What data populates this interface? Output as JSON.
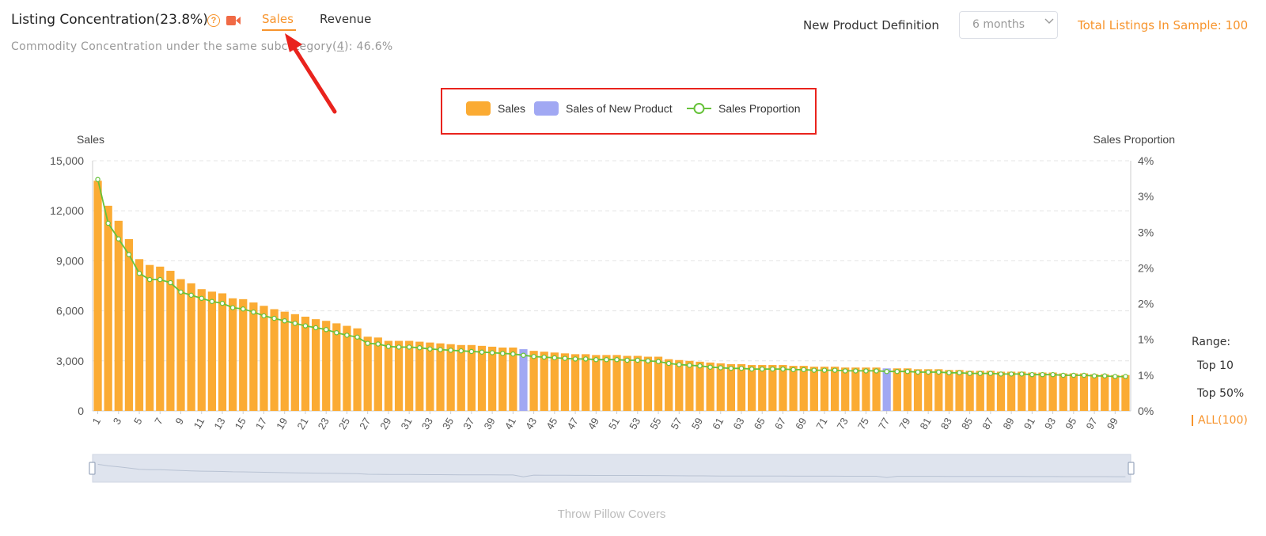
{
  "header": {
    "title": "Listing Concentration(23.8%)",
    "tabs": [
      "Sales",
      "Revenue"
    ],
    "active_tab": "Sales",
    "subtitle_prefix": "Commodity Concentration under the same subcategory(",
    "subtitle_count": "4",
    "subtitle_suffix": "):  46.6%"
  },
  "controls": {
    "new_product_label": "New Product Definition",
    "new_product_value": "6 months",
    "total_listings": "Total Listings In Sample: 100"
  },
  "range": {
    "label": "Range:",
    "options": [
      "Top 10",
      "Top 50%",
      "ALL(100)"
    ],
    "selected": "ALL(100)"
  },
  "colors": {
    "sales": "#fbab33",
    "new_product": "#a1a8f3",
    "proportion": "#67c23a",
    "accent": "#f7942c",
    "annotation": "#e9231d"
  },
  "chart_data": {
    "type": "bar",
    "title": "",
    "xlabel": "Throw Pillow Covers",
    "ylabel": "Sales",
    "y2label": "Sales Proportion",
    "ylim": [
      0,
      15000
    ],
    "yticks": [
      "0",
      "3,000",
      "6,000",
      "9,000",
      "12,000",
      "15,000"
    ],
    "y2lim": [
      0,
      4
    ],
    "y2ticks": [
      "0%",
      "1%",
      "1%",
      "2%",
      "2%",
      "3%",
      "3%",
      "4%"
    ],
    "grid": true,
    "legend_position": "top-center",
    "legend": [
      "Sales",
      "Sales of New Product",
      "Sales Proportion"
    ],
    "x": [
      1,
      2,
      3,
      4,
      5,
      6,
      7,
      8,
      9,
      10,
      11,
      12,
      13,
      14,
      15,
      16,
      17,
      18,
      19,
      20,
      21,
      22,
      23,
      24,
      25,
      26,
      27,
      28,
      29,
      30,
      31,
      32,
      33,
      34,
      35,
      36,
      37,
      38,
      39,
      40,
      41,
      42,
      43,
      44,
      45,
      46,
      47,
      48,
      49,
      50,
      51,
      52,
      53,
      54,
      55,
      56,
      57,
      58,
      59,
      60,
      61,
      62,
      63,
      64,
      65,
      66,
      67,
      68,
      69,
      70,
      71,
      72,
      73,
      74,
      75,
      76,
      77,
      78,
      79,
      80,
      81,
      82,
      83,
      84,
      85,
      86,
      87,
      88,
      89,
      90,
      91,
      92,
      93,
      94,
      95,
      96,
      97,
      98,
      99,
      100
    ],
    "series": [
      {
        "name": "Sales",
        "values": [
          13800,
          12300,
          11400,
          10300,
          9100,
          8750,
          8650,
          8400,
          7900,
          7650,
          7300,
          7150,
          7050,
          6750,
          6700,
          6500,
          6300,
          6100,
          5950,
          5800,
          5650,
          5500,
          5400,
          5250,
          5100,
          4950,
          4450,
          4400,
          4200,
          4200,
          4200,
          4150,
          4100,
          4050,
          4000,
          3950,
          3950,
          3900,
          3850,
          3800,
          3800,
          3700,
          3600,
          3550,
          3500,
          3450,
          3400,
          3400,
          3350,
          3350,
          3350,
          3300,
          3300,
          3250,
          3250,
          3100,
          3050,
          3000,
          2950,
          2900,
          2850,
          2800,
          2800,
          2750,
          2750,
          2750,
          2750,
          2700,
          2700,
          2650,
          2650,
          2650,
          2600,
          2600,
          2600,
          2600,
          2550,
          2550,
          2550,
          2500,
          2500,
          2500,
          2450,
          2450,
          2400,
          2400,
          2400,
          2350,
          2350,
          2350,
          2300,
          2300,
          2300,
          2250,
          2250,
          2250,
          2200,
          2200,
          2150,
          2150
        ]
      },
      {
        "name": "Sales of New Product",
        "new_product_indices": [
          42,
          77
        ]
      },
      {
        "name": "Sales Proportion",
        "values": [
          3.7,
          3.0,
          2.75,
          2.5,
          2.2,
          2.1,
          2.1,
          2.05,
          1.9,
          1.85,
          1.8,
          1.75,
          1.72,
          1.65,
          1.63,
          1.58,
          1.52,
          1.48,
          1.44,
          1.4,
          1.36,
          1.33,
          1.3,
          1.25,
          1.21,
          1.18,
          1.08,
          1.07,
          1.03,
          1.02,
          1.02,
          1.01,
          0.99,
          0.98,
          0.97,
          0.96,
          0.95,
          0.94,
          0.93,
          0.92,
          0.91,
          0.89,
          0.87,
          0.86,
          0.85,
          0.84,
          0.83,
          0.83,
          0.82,
          0.82,
          0.82,
          0.81,
          0.81,
          0.8,
          0.79,
          0.76,
          0.74,
          0.73,
          0.72,
          0.7,
          0.69,
          0.68,
          0.68,
          0.67,
          0.67,
          0.67,
          0.67,
          0.66,
          0.66,
          0.65,
          0.65,
          0.65,
          0.64,
          0.64,
          0.64,
          0.64,
          0.63,
          0.63,
          0.63,
          0.62,
          0.62,
          0.62,
          0.61,
          0.61,
          0.6,
          0.6,
          0.6,
          0.59,
          0.59,
          0.59,
          0.58,
          0.58,
          0.58,
          0.57,
          0.57,
          0.57,
          0.56,
          0.56,
          0.55,
          0.55
        ]
      }
    ]
  }
}
